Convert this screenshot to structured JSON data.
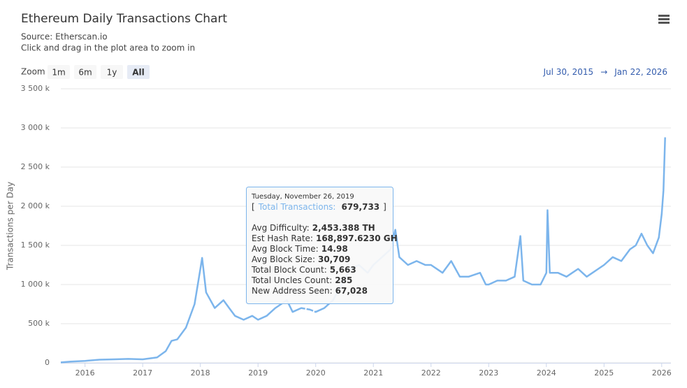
{
  "chart_data": {
    "type": "line",
    "title": "Ethereum Daily Transactions Chart",
    "subtitle": [
      "Source: Etherscan.io",
      "Click and drag in the plot area to zoom in"
    ],
    "y_label": "Transactions per Day",
    "range_selector": {
      "label": "Zoom",
      "buttons": [
        "1m",
        "6m",
        "1y",
        "All"
      ],
      "selected": 3,
      "from": "Jul 30, 2015",
      "arrow": "→",
      "to": "Jan 22, 2026"
    },
    "color": "#7cb5ec",
    "grid": true,
    "xlim": [
      2015.58,
      2026.16
    ],
    "xticks": [
      2016,
      2017,
      2018,
      2019,
      2020,
      2021,
      2022,
      2023,
      2024,
      2025,
      2026
    ],
    "ylim": [
      0,
      3500000
    ],
    "yticks": [
      0,
      {
        "value": 500000,
        "label": "500 k"
      },
      {
        "value": 1000000,
        "label": "1 000 k"
      },
      {
        "value": 1500000,
        "label": "1 500 k"
      },
      {
        "value": 2000000,
        "label": "2 000 k"
      },
      {
        "value": 2500000,
        "label": "2 500 k"
      },
      {
        "value": 3000000,
        "label": "3 000 k"
      },
      {
        "value": 3500000,
        "label": "3 500 k"
      }
    ],
    "x": [
      2015.58,
      2015.75,
      2016.0,
      2016.25,
      2016.5,
      2016.75,
      2017.0,
      2017.25,
      2017.4,
      2017.5,
      2017.6,
      2017.75,
      2017.9,
      2018.0,
      2018.03,
      2018.1,
      2018.25,
      2018.4,
      2018.5,
      2018.6,
      2018.75,
      2018.9,
      2019.0,
      2019.15,
      2019.3,
      2019.5,
      2019.6,
      2019.75,
      2019.9,
      2020.0,
      2020.15,
      2020.3,
      2020.45,
      2020.6,
      2020.75,
      2020.9,
      2021.0,
      2021.15,
      2021.3,
      2021.38,
      2021.45,
      2021.6,
      2021.75,
      2021.9,
      2022.0,
      2022.2,
      2022.35,
      2022.5,
      2022.65,
      2022.85,
      2022.95,
      2023.0,
      2023.15,
      2023.3,
      2023.45,
      2023.55,
      2023.6,
      2023.75,
      2023.9,
      2024.0,
      2024.02,
      2024.06,
      2024.2,
      2024.35,
      2024.45,
      2024.55,
      2024.7,
      2024.8,
      2024.9,
      2025.0,
      2025.15,
      2025.3,
      2025.45,
      2025.55,
      2025.65,
      2025.75,
      2025.85,
      2025.95,
      2026.0,
      2026.03,
      2026.06
    ],
    "values": [
      5000,
      15000,
      25000,
      40000,
      45000,
      50000,
      45000,
      70000,
      150000,
      280000,
      300000,
      450000,
      750000,
      1200000,
      1340000,
      900000,
      700000,
      800000,
      700000,
      600000,
      550000,
      600000,
      550000,
      600000,
      700000,
      800000,
      650000,
      700000,
      679733,
      650000,
      700000,
      800000,
      1000000,
      1200000,
      1250000,
      1150000,
      1250000,
      1350000,
      1450000,
      1700000,
      1350000,
      1250000,
      1300000,
      1250000,
      1250000,
      1150000,
      1300000,
      1100000,
      1100000,
      1150000,
      1000000,
      1000000,
      1050000,
      1050000,
      1100000,
      1620000,
      1050000,
      1000000,
      1000000,
      1150000,
      1950000,
      1150000,
      1150000,
      1100000,
      1150000,
      1200000,
      1100000,
      1150000,
      1200000,
      1250000,
      1350000,
      1300000,
      1450000,
      1500000,
      1650000,
      1500000,
      1400000,
      1600000,
      1900000,
      2200000,
      2880000
    ],
    "tooltip": {
      "date": "Tuesday, November 26, 2019",
      "x": 2019.9,
      "open": "[",
      "label": "Total Transactions:",
      "value": 679733,
      "value_label": "679,733",
      "close": "]",
      "rows": [
        {
          "label": "Avg Difficulty:",
          "value": "2,453.388 TH"
        },
        {
          "label": "Est Hash Rate:",
          "value": "168,897.6230 GH"
        },
        {
          "label": "Avg Block Time:",
          "value": "14.98"
        },
        {
          "label": "Avg Block Size:",
          "value": "30,709"
        },
        {
          "label": "Total Block Count:",
          "value": "5,663"
        },
        {
          "label": "Total Uncles Count:",
          "value": "285"
        },
        {
          "label": "New Address Seen:",
          "value": "67,028"
        }
      ]
    }
  }
}
